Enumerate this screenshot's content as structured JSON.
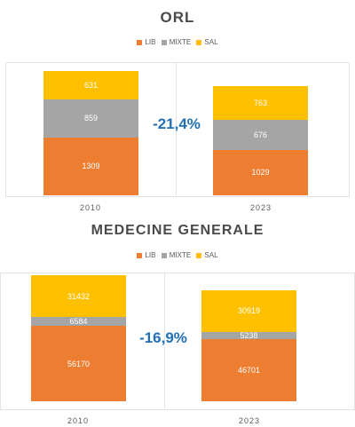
{
  "colors": {
    "LIB": "#ed7d31",
    "MIXTE": "#a5a5a5",
    "SAL": "#ffc000",
    "change_text": "#1f6fb2"
  },
  "chart_data": [
    {
      "type": "bar",
      "stacked": true,
      "title": "ORL",
      "categories": [
        "2010",
        "2023"
      ],
      "series": [
        {
          "name": "LIB",
          "values": [
            1309,
            1029
          ]
        },
        {
          "name": "MIXTE",
          "values": [
            859,
            676
          ]
        },
        {
          "name": "SAL",
          "values": [
            631,
            763
          ]
        }
      ],
      "annotation": "-21,4%",
      "legend": "top-center",
      "grid": false
    },
    {
      "type": "bar",
      "stacked": true,
      "title": "MEDECINE  GENERALE",
      "categories": [
        "2010",
        "2023"
      ],
      "series": [
        {
          "name": "LIB",
          "values": [
            56170,
            46701
          ]
        },
        {
          "name": "MIXTE",
          "values": [
            6584,
            5238
          ]
        },
        {
          "name": "SAL",
          "values": [
            31432,
            30919
          ]
        }
      ],
      "annotation": "-16,9%",
      "legend": "top-center",
      "grid": false
    }
  ]
}
